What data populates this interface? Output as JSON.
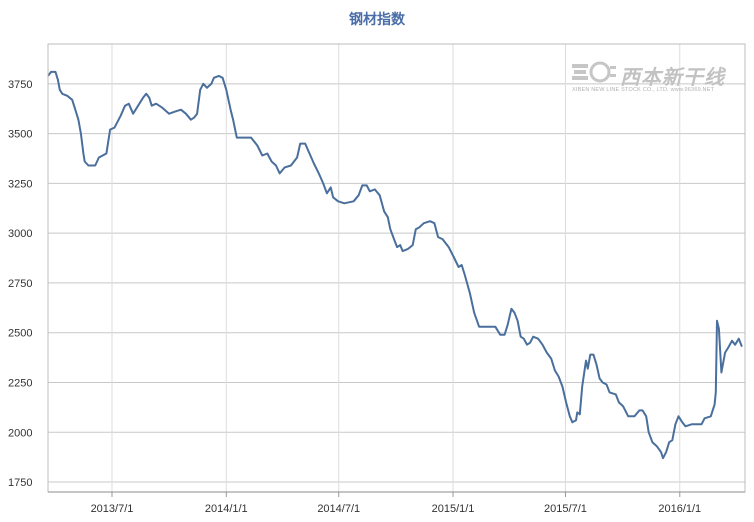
{
  "chart_data": {
    "type": "line",
    "title": "钢材指数",
    "xlabel": "",
    "ylabel": "",
    "ylim": [
      1700,
      3950
    ],
    "y_ticks": [
      1750,
      2000,
      2250,
      2500,
      2750,
      3000,
      3250,
      3500,
      3750
    ],
    "x_ticks": [
      "2013/7/1",
      "2014/1/1",
      "2014/7/1",
      "2015/1/1",
      "2015/7/1",
      "2016/1/1"
    ],
    "x_range": [
      "2013/3/20",
      "2016/4/15"
    ],
    "grid": true,
    "line_color": "#4a6f9c",
    "series": [
      {
        "name": "",
        "points": [
          [
            "2013/3/20",
            3790
          ],
          [
            "2013/3/25",
            3810
          ],
          [
            "2013/4/1",
            3810
          ],
          [
            "2013/4/5",
            3770
          ],
          [
            "2013/4/8",
            3720
          ],
          [
            "2013/4/12",
            3700
          ],
          [
            "2013/4/20",
            3690
          ],
          [
            "2013/4/28",
            3670
          ],
          [
            "2013/5/3",
            3620
          ],
          [
            "2013/5/8",
            3570
          ],
          [
            "2013/5/12",
            3500
          ],
          [
            "2013/5/16",
            3400
          ],
          [
            "2013/5/18",
            3360
          ],
          [
            "2013/5/24",
            3340
          ],
          [
            "2013/6/4",
            3340
          ],
          [
            "2013/6/10",
            3380
          ],
          [
            "2013/6/16",
            3390
          ],
          [
            "2013/6/22",
            3400
          ],
          [
            "2013/6/28",
            3520
          ],
          [
            "2013/7/5",
            3530
          ],
          [
            "2013/7/15",
            3590
          ],
          [
            "2013/7/22",
            3640
          ],
          [
            "2013/7/28",
            3650
          ],
          [
            "2013/8/4",
            3600
          ],
          [
            "2013/8/12",
            3640
          ],
          [
            "2013/8/20",
            3680
          ],
          [
            "2013/8/25",
            3700
          ],
          [
            "2013/8/30",
            3680
          ],
          [
            "2013/9/3",
            3640
          ],
          [
            "2013/9/10",
            3650
          ],
          [
            "2013/9/20",
            3630
          ],
          [
            "2013/10/1",
            3600
          ],
          [
            "2013/10/10",
            3610
          ],
          [
            "2013/10/20",
            3620
          ],
          [
            "2013/10/28",
            3600
          ],
          [
            "2013/11/5",
            3570
          ],
          [
            "2013/11/10",
            3580
          ],
          [
            "2013/11/15",
            3600
          ],
          [
            "2013/11/20",
            3720
          ],
          [
            "2013/11/25",
            3750
          ],
          [
            "2013/12/1",
            3730
          ],
          [
            "2013/12/8",
            3750
          ],
          [
            "2013/12/12",
            3780
          ],
          [
            "2013/12/20",
            3790
          ],
          [
            "2013/12/26",
            3780
          ],
          [
            "2014/1/1",
            3720
          ],
          [
            "2014/1/8",
            3620
          ],
          [
            "2014/1/12",
            3570
          ],
          [
            "2014/1/18",
            3480
          ],
          [
            "2014/1/25",
            3480
          ],
          [
            "2014/2/10",
            3480
          ],
          [
            "2014/2/20",
            3440
          ],
          [
            "2014/2/28",
            3390
          ],
          [
            "2014/3/8",
            3400
          ],
          [
            "2014/3/15",
            3360
          ],
          [
            "2014/3/22",
            3340
          ],
          [
            "2014/3/28",
            3300
          ],
          [
            "2014/4/5",
            3330
          ],
          [
            "2014/4/15",
            3340
          ],
          [
            "2014/4/25",
            3380
          ],
          [
            "2014/4/30",
            3450
          ],
          [
            "2014/5/8",
            3450
          ],
          [
            "2014/5/15",
            3400
          ],
          [
            "2014/5/22",
            3350
          ],
          [
            "2014/5/30",
            3300
          ],
          [
            "2014/6/6",
            3250
          ],
          [
            "2014/6/12",
            3200
          ],
          [
            "2014/6/18",
            3230
          ],
          [
            "2014/6/22",
            3180
          ],
          [
            "2014/6/30",
            3160
          ],
          [
            "2014/7/10",
            3150
          ],
          [
            "2014/7/25",
            3160
          ],
          [
            "2014/8/2",
            3190
          ],
          [
            "2014/8/8",
            3240
          ],
          [
            "2014/8/15",
            3240
          ],
          [
            "2014/8/20",
            3210
          ],
          [
            "2014/8/28",
            3220
          ],
          [
            "2014/9/5",
            3190
          ],
          [
            "2014/9/12",
            3110
          ],
          [
            "2014/9/18",
            3080
          ],
          [
            "2014/9/22",
            3020
          ],
          [
            "2014/9/28",
            2970
          ],
          [
            "2014/10/3",
            2930
          ],
          [
            "2014/10/8",
            2940
          ],
          [
            "2014/10/12",
            2910
          ],
          [
            "2014/10/20",
            2920
          ],
          [
            "2014/10/28",
            2940
          ],
          [
            "2014/11/2",
            3020
          ],
          [
            "2014/11/8",
            3030
          ],
          [
            "2014/11/15",
            3050
          ],
          [
            "2014/11/25",
            3060
          ],
          [
            "2014/12/2",
            3050
          ],
          [
            "2014/12/8",
            2980
          ],
          [
            "2014/12/15",
            2970
          ],
          [
            "2014/12/25",
            2930
          ],
          [
            "2015/1/2",
            2880
          ],
          [
            "2015/1/10",
            2830
          ],
          [
            "2015/1/15",
            2840
          ],
          [
            "2015/1/20",
            2790
          ],
          [
            "2015/1/28",
            2700
          ],
          [
            "2015/2/4",
            2600
          ],
          [
            "2015/2/12",
            2530
          ],
          [
            "2015/3/10",
            2530
          ],
          [
            "2015/3/18",
            2490
          ],
          [
            "2015/3/25",
            2490
          ],
          [
            "2015/3/30",
            2540
          ],
          [
            "2015/4/5",
            2620
          ],
          [
            "2015/4/10",
            2600
          ],
          [
            "2015/4/15",
            2560
          ],
          [
            "2015/4/20",
            2480
          ],
          [
            "2015/4/25",
            2470
          ],
          [
            "2015/4/30",
            2440
          ],
          [
            "2015/5/5",
            2450
          ],
          [
            "2015/5/10",
            2480
          ],
          [
            "2015/5/18",
            2470
          ],
          [
            "2015/5/25",
            2440
          ],
          [
            "2015/6/1",
            2400
          ],
          [
            "2015/6/8",
            2370
          ],
          [
            "2015/6/14",
            2310
          ],
          [
            "2015/6/20",
            2280
          ],
          [
            "2015/6/26",
            2230
          ],
          [
            "2015/7/2",
            2150
          ],
          [
            "2015/7/8",
            2080
          ],
          [
            "2015/7/12",
            2050
          ],
          [
            "2015/7/18",
            2060
          ],
          [
            "2015/7/20",
            2100
          ],
          [
            "2015/7/24",
            2090
          ],
          [
            "2015/7/28",
            2230
          ],
          [
            "2015/8/3",
            2360
          ],
          [
            "2015/8/6",
            2320
          ],
          [
            "2015/8/10",
            2390
          ],
          [
            "2015/8/15",
            2390
          ],
          [
            "2015/8/20",
            2340
          ],
          [
            "2015/8/25",
            2270
          ],
          [
            "2015/8/30",
            2250
          ],
          [
            "2015/9/5",
            2240
          ],
          [
            "2015/9/10",
            2200
          ],
          [
            "2015/9/20",
            2190
          ],
          [
            "2015/9/25",
            2150
          ],
          [
            "2015/10/2",
            2130
          ],
          [
            "2015/10/10",
            2080
          ],
          [
            "2015/10/20",
            2080
          ],
          [
            "2015/10/28",
            2110
          ],
          [
            "2015/11/2",
            2110
          ],
          [
            "2015/11/8",
            2080
          ],
          [
            "2015/11/12",
            2000
          ],
          [
            "2015/11/18",
            1950
          ],
          [
            "2015/11/25",
            1930
          ],
          [
            "2015/12/2",
            1900
          ],
          [
            "2015/12/5",
            1870
          ],
          [
            "2015/12/10",
            1900
          ],
          [
            "2015/12/15",
            1950
          ],
          [
            "2015/12/20",
            1960
          ],
          [
            "2015/12/25",
            2040
          ],
          [
            "2015/12/30",
            2080
          ],
          [
            "2016/1/5",
            2050
          ],
          [
            "2016/1/10",
            2030
          ],
          [
            "2016/1/20",
            2040
          ],
          [
            "2016/2/5",
            2040
          ],
          [
            "2016/2/10",
            2070
          ],
          [
            "2016/2/20",
            2080
          ],
          [
            "2016/2/26",
            2140
          ],
          [
            "2016/2/28",
            2200
          ],
          [
            "2016/3/1",
            2560
          ],
          [
            "2016/3/4",
            2520
          ],
          [
            "2016/3/8",
            2300
          ],
          [
            "2016/3/14",
            2400
          ],
          [
            "2016/3/20",
            2430
          ],
          [
            "2016/3/25",
            2460
          ],
          [
            "2016/3/30",
            2440
          ],
          [
            "2016/4/5",
            2470
          ],
          [
            "2016/4/10",
            2430
          ]
        ]
      }
    ]
  },
  "watermark": {
    "name": "西本新干线",
    "sub": "XIBEN NEW LINE STOCK CO., LTD.  www.96369.NET"
  }
}
